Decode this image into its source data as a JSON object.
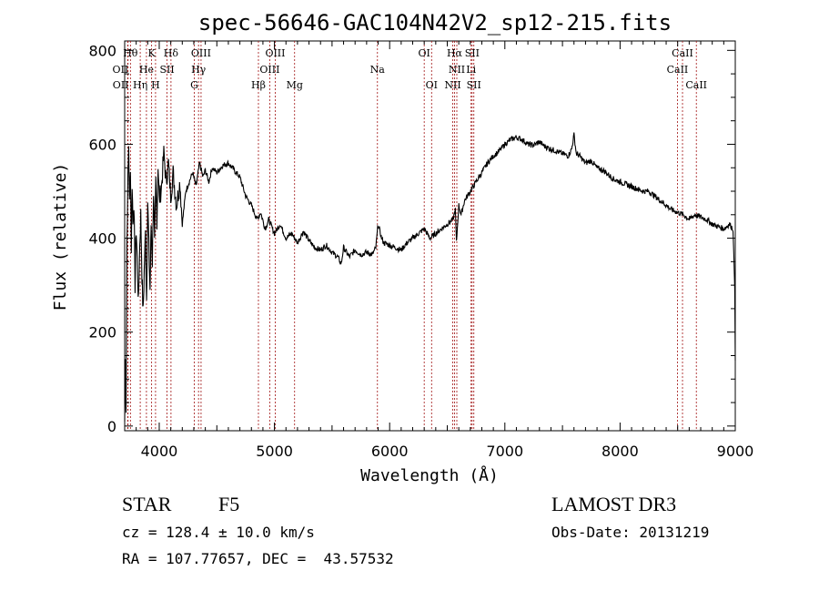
{
  "chart_data": {
    "type": "line",
    "title": "spec-56646-GAC104N42V2_sp12-215.fits",
    "xlabel": "Wavelength (Å)",
    "ylabel": "Flux (relative)",
    "xlim": [
      3700,
      9000
    ],
    "ylim": [
      -10,
      820
    ],
    "x_ticks": [
      4000,
      5000,
      6000,
      7000,
      8000,
      9000
    ],
    "y_ticks": [
      0,
      200,
      400,
      600,
      800
    ],
    "line_color": "#000000",
    "marker_color": "#a01010",
    "series": [
      {
        "x": [
          3700,
          3705,
          3712,
          3720,
          3728,
          3735,
          3742,
          3750,
          3758,
          3765,
          3772,
          3780,
          3790,
          3800,
          3810,
          3820,
          3830,
          3840,
          3850,
          3860,
          3870,
          3880,
          3890,
          3900,
          3910,
          3920,
          3930,
          3940,
          3950,
          3960,
          3970,
          3980,
          3990,
          4000,
          4020,
          4040,
          4060,
          4080,
          4100,
          4120,
          4150,
          4180,
          4200,
          4230,
          4260,
          4290,
          4320,
          4350,
          4380,
          4400,
          4430,
          4460,
          4500,
          4550,
          4600,
          4650,
          4700,
          4750,
          4800,
          4850,
          4880,
          4920,
          4950,
          5000,
          5050,
          5100,
          5150,
          5200,
          5250,
          5300,
          5350,
          5400,
          5450,
          5500,
          5550,
          5580,
          5600,
          5650,
          5700,
          5750,
          5800,
          5850,
          5880,
          5900,
          5930,
          5950,
          6000,
          6050,
          6100,
          6150,
          6200,
          6250,
          6300,
          6350,
          6400,
          6450,
          6500,
          6550,
          6570,
          6580,
          6600,
          6620,
          6650,
          6700,
          6750,
          6800,
          6850,
          6900,
          6950,
          7000,
          7050,
          7100,
          7150,
          7200,
          7250,
          7300,
          7350,
          7400,
          7450,
          7500,
          7550,
          7580,
          7600,
          7620,
          7650,
          7700,
          7750,
          7800,
          7850,
          7900,
          7950,
          8000,
          8050,
          8100,
          8150,
          8200,
          8250,
          8300,
          8350,
          8400,
          8450,
          8500,
          8550,
          8600,
          8650,
          8700,
          8750,
          8800,
          8850,
          8900,
          8950,
          8980,
          8995,
          9000
        ],
        "y": [
          10,
          140,
          40,
          390,
          520,
          600,
          470,
          560,
          380,
          520,
          430,
          480,
          300,
          420,
          350,
          260,
          380,
          450,
          320,
          240,
          330,
          410,
          270,
          480,
          380,
          290,
          430,
          350,
          500,
          380,
          520,
          440,
          560,
          480,
          510,
          580,
          520,
          560,
          490,
          540,
          470,
          520,
          430,
          500,
          520,
          540,
          510,
          560,
          530,
          545,
          520,
          550,
          540,
          555,
          560,
          545,
          530,
          490,
          470,
          440,
          455,
          420,
          440,
          410,
          430,
          400,
          410,
          390,
          415,
          395,
          380,
          375,
          385,
          370,
          360,
          345,
          380,
          360,
          375,
          365,
          370,
          365,
          380,
          430,
          400,
          390,
          385,
          380,
          375,
          390,
          400,
          410,
          420,
          400,
          410,
          420,
          430,
          440,
          460,
          390,
          470,
          450,
          480,
          500,
          520,
          540,
          560,
          575,
          585,
          600,
          610,
          615,
          610,
          600,
          598,
          605,
          595,
          590,
          585,
          580,
          575,
          590,
          620,
          580,
          575,
          560,
          565,
          550,
          545,
          535,
          525,
          520,
          515,
          510,
          505,
          500,
          500,
          490,
          480,
          470,
          460,
          455,
          450,
          440,
          450,
          445,
          440,
          430,
          425,
          420,
          430,
          420,
          300,
          140
        ]
      }
    ],
    "lines": [
      {
        "label": "OII",
        "wl": 3727,
        "row": 2,
        "dx": -8
      },
      {
        "label": "OII",
        "wl": 3729,
        "row": 3,
        "dx": -8
      },
      {
        "label": "Hθ",
        "wl": 3750,
        "row": 1,
        "dx": 0
      },
      {
        "label": "Hη",
        "wl": 3835,
        "row": 3,
        "dx": 0
      },
      {
        "label": "He",
        "wl": 3889,
        "row": 2,
        "dx": 0
      },
      {
        "label": "K",
        "wl": 3934,
        "row": 1,
        "dx": 0
      },
      {
        "label": "H",
        "wl": 3968,
        "row": 3,
        "dx": 0
      },
      {
        "label": "SII",
        "wl": 4068,
        "row": 2,
        "dx": 0
      },
      {
        "label": "Hδ",
        "wl": 4102,
        "row": 1,
        "dx": 0
      },
      {
        "label": "G",
        "wl": 4304,
        "row": 3,
        "dx": 0
      },
      {
        "label": "Hγ",
        "wl": 4341,
        "row": 2,
        "dx": 0
      },
      {
        "label": "OIII",
        "wl": 4363,
        "row": 1,
        "dx": 0
      },
      {
        "label": "Hβ",
        "wl": 4861,
        "row": 3,
        "dx": 0
      },
      {
        "label": "OIII",
        "wl": 4959,
        "row": 2,
        "dx": 0
      },
      {
        "label": "OIII",
        "wl": 5007,
        "row": 1,
        "dx": 0
      },
      {
        "label": "Mg",
        "wl": 5175,
        "row": 3,
        "dx": 0
      },
      {
        "label": "Na",
        "wl": 5894,
        "row": 2,
        "dx": 0
      },
      {
        "label": "OI",
        "wl": 6300,
        "row": 1,
        "dx": 0
      },
      {
        "label": "OI",
        "wl": 6364,
        "row": 3,
        "dx": 0
      },
      {
        "label": "NII",
        "wl": 6548,
        "row": 3,
        "dx": 0
      },
      {
        "label": "Hα",
        "wl": 6563,
        "row": 1,
        "dx": 0
      },
      {
        "label": "NII",
        "wl": 6583,
        "row": 2,
        "dx": 0
      },
      {
        "label": "Li",
        "wl": 6707,
        "row": 2,
        "dx": 0
      },
      {
        "label": "SII",
        "wl": 6716,
        "row": 1,
        "dx": 0
      },
      {
        "label": "SII",
        "wl": 6731,
        "row": 3,
        "dx": 0
      },
      {
        "label": "CaII",
        "wl": 8498,
        "row": 2,
        "dx": 0
      },
      {
        "label": "CaII",
        "wl": 8542,
        "row": 1,
        "dx": 0
      },
      {
        "label": "CaII",
        "wl": 8662,
        "row": 3,
        "dx": 0
      }
    ]
  },
  "info": {
    "class_label": "STAR",
    "subclass": "F5",
    "survey": "LAMOST DR3",
    "cz": "cz = 128.4 ± 10.0 km/s",
    "obs_date": "Obs-Date: 20131219",
    "radec": "RA = 107.77657, DEC =  43.57532"
  }
}
